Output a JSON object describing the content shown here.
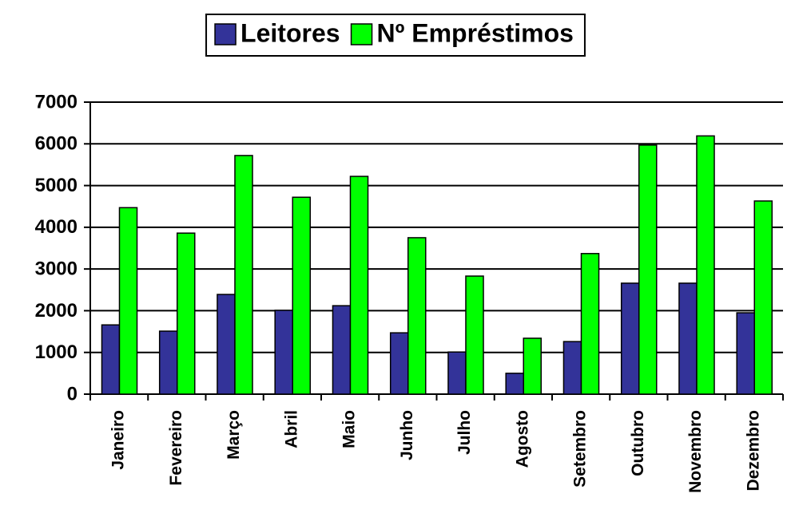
{
  "chart_data": {
    "type": "bar",
    "categories": [
      "Janeiro",
      "Fevereiro",
      "Março",
      "Abril",
      "Maio",
      "Junho",
      "Julho",
      "Agosto",
      "Setembro",
      "Outubro",
      "Novembro",
      "Dezembro"
    ],
    "series": [
      {
        "name": "Leitores",
        "color": "#333399",
        "values": [
          1660,
          1510,
          2390,
          2010,
          2120,
          1470,
          1010,
          500,
          1260,
          2660,
          2660,
          1950
        ]
      },
      {
        "name": "Nº Empréstimos",
        "color": "#00ff00",
        "values": [
          4470,
          3860,
          5720,
          4720,
          5220,
          3750,
          2830,
          1340,
          3370,
          5970,
          6190,
          4630
        ]
      }
    ],
    "ylim": [
      0,
      7000
    ],
    "yticks": [
      0,
      1000,
      2000,
      3000,
      4000,
      5000,
      6000,
      7000
    ],
    "grid": true,
    "legend": "top"
  }
}
